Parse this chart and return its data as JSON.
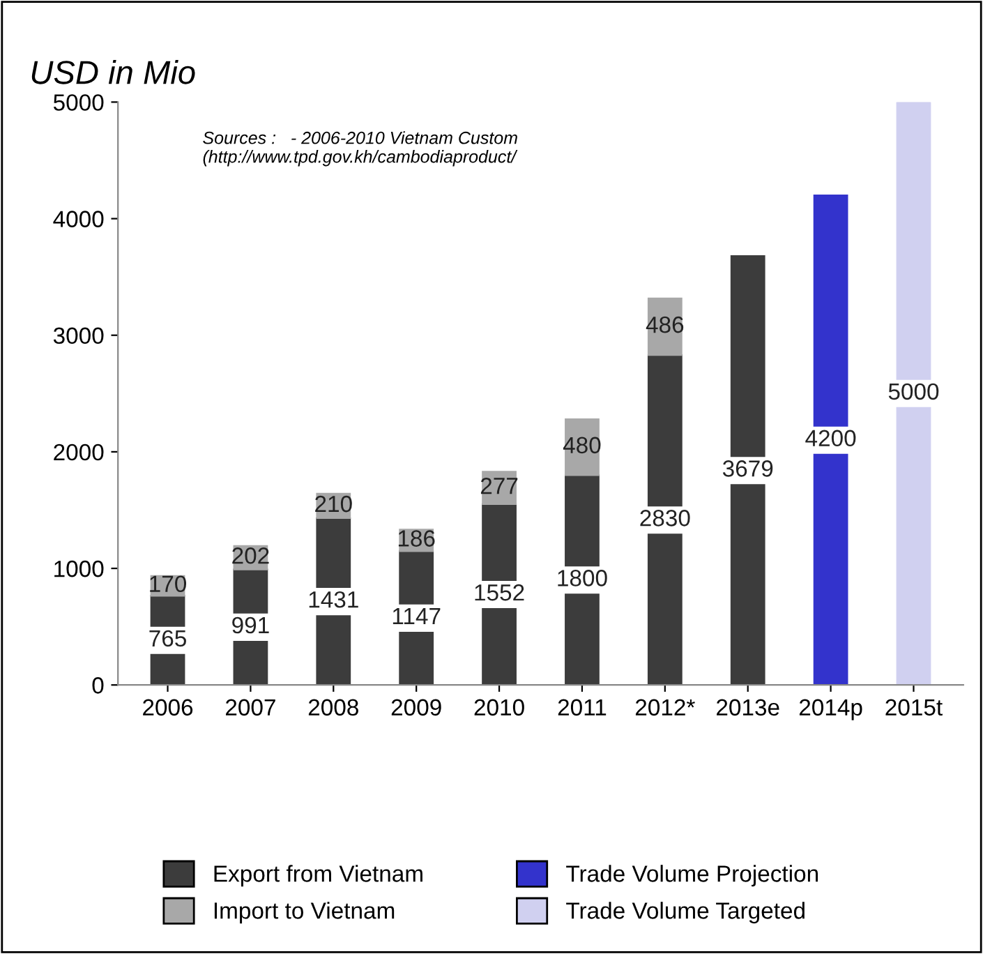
{
  "chart_data": {
    "type": "bar",
    "stacked": true,
    "ylabel": "USD in Mio",
    "categories": [
      "2006",
      "2007",
      "2008",
      "2009",
      "2010",
      "2011",
      "2012*",
      "2013e",
      "2014p",
      "2015t"
    ],
    "series": [
      {
        "name": "Export from Vietnam",
        "color": "#3c3c3c",
        "values": [
          765,
          991,
          1431,
          1147,
          1552,
          1800,
          2830,
          3679,
          null,
          null
        ]
      },
      {
        "name": "Import to Vietnam",
        "color": "#a8a8a8",
        "values": [
          170,
          202,
          210,
          186,
          277,
          480,
          486,
          null,
          null,
          null
        ]
      },
      {
        "name": "Trade Volume Projection",
        "color": "#3333cc",
        "values": [
          null,
          null,
          null,
          null,
          null,
          null,
          null,
          null,
          4200,
          null
        ]
      },
      {
        "name": "Trade Volume Targeted",
        "color": "#d0d0f0",
        "values": [
          null,
          null,
          null,
          null,
          null,
          null,
          null,
          null,
          null,
          5000
        ]
      }
    ],
    "ylim": [
      0,
      5000
    ],
    "yticks": [
      0,
      1000,
      2000,
      3000,
      4000,
      5000
    ],
    "grid": false,
    "legend": "bottom",
    "data_labels": true,
    "annotations": [
      "Sources :   - 2006-2010 Vietnam Custom\n(http://www.tpd.gov.kh/cambodiaproduct/"
    ]
  }
}
